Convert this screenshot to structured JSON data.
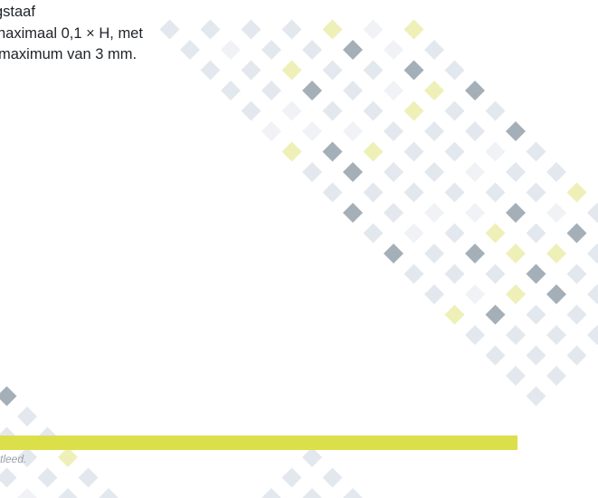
{
  "body_text": {
    "lines": [
      "gstaaf",
      "naximaal 0,1 × H, met",
      "maximum van 3 mm."
    ]
  },
  "caption": "tleed.",
  "colors": {
    "light": "#e3e8ee",
    "faint": "#f0f2f5",
    "dark": "#a4afb7",
    "yellow": "#eef0b8",
    "bar": "#dbe04a"
  }
}
